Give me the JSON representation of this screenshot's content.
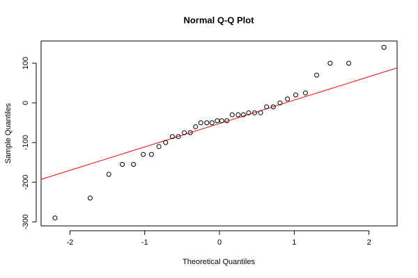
{
  "chart_data": {
    "type": "scatter",
    "title": "Normal Q-Q Plot",
    "x_label": "Theoretical Quantiles",
    "y_label": "Sample Quantiles",
    "x": [
      -2.2,
      -1.73,
      -1.48,
      -1.3,
      -1.15,
      -1.02,
      -0.91,
      -0.81,
      -0.72,
      -0.63,
      -0.55,
      -0.47,
      -0.39,
      -0.32,
      -0.25,
      -0.17,
      -0.1,
      -0.03,
      0.03,
      0.1,
      0.17,
      0.25,
      0.32,
      0.39,
      0.47,
      0.55,
      0.63,
      0.72,
      0.81,
      0.91,
      1.02,
      1.15,
      1.3,
      1.48,
      1.73,
      2.2
    ],
    "values": [
      -290,
      -240,
      -180,
      -155,
      -155,
      -130,
      -130,
      -110,
      -100,
      -85,
      -85,
      -75,
      -75,
      -60,
      -50,
      -50,
      -50,
      -45,
      -45,
      -45,
      -30,
      -30,
      -30,
      -25,
      -25,
      -25,
      -10,
      -10,
      0,
      10,
      20,
      25,
      70,
      100,
      100,
      140
    ],
    "color": "#000000",
    "qq_line": {
      "intercept": -52,
      "slope": 59,
      "color": "#ff0000"
    },
    "xlim": [
      -2.386,
      2.376
    ],
    "ylim": [
      -310,
      156
    ],
    "xticks": [
      -2,
      -1,
      0,
      1,
      2
    ],
    "yticks": [
      -300,
      -200,
      -100,
      0,
      100
    ]
  }
}
